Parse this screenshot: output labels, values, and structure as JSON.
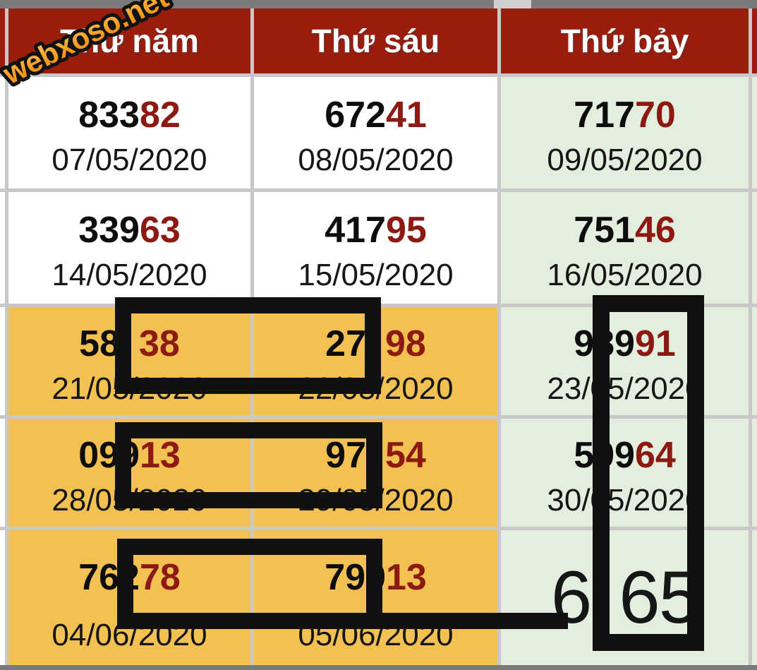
{
  "watermark": {
    "text": "webxoso.net"
  },
  "header": {
    "columns": [
      "Thứ năm",
      "Thứ sáu",
      "Thứ bảy"
    ]
  },
  "table": {
    "rows": [
      {
        "cells": [
          {
            "prefix": "833",
            "suffix": "82",
            "date": "07/05/2020"
          },
          {
            "prefix": "672",
            "suffix": "41",
            "date": "08/05/2020"
          },
          {
            "prefix": "717",
            "suffix": "70",
            "date": "09/05/2020"
          }
        ]
      },
      {
        "cells": [
          {
            "prefix": "339",
            "suffix": "63",
            "date": "14/05/2020"
          },
          {
            "prefix": "417",
            "suffix": "95",
            "date": "15/05/2020"
          },
          {
            "prefix": "751",
            "suffix": "46",
            "date": "16/05/2020"
          }
        ]
      },
      {
        "cells": [
          {
            "prefix": "58",
            "suffix": "38",
            "date": "21/05/2020"
          },
          {
            "prefix": "27",
            "suffix": "98",
            "date": "22/05/2020"
          },
          {
            "prefix": "989",
            "suffix": "91",
            "date": "23/05/2020"
          }
        ]
      },
      {
        "cells": [
          {
            "prefix": "099",
            "suffix": "13",
            "date": "28/05/2020"
          },
          {
            "prefix": "97",
            "suffix": "54",
            "date": "29/05/2020"
          },
          {
            "prefix": "599",
            "suffix": "64",
            "date": "30/05/2020"
          }
        ]
      },
      {
        "cells": [
          {
            "prefix": "762",
            "suffix": "78",
            "date": "04/06/2020"
          },
          {
            "prefix": "799",
            "suffix": "13",
            "date": "05/06/2020"
          },
          {
            "big_prefix": "6",
            "big_suffix": "65"
          }
        ]
      }
    ]
  },
  "colors": {
    "header_bg": "#9A1D0E",
    "number_black": "#0d0d0d",
    "number_red": "#8C1A12",
    "row_orange": "#F3C052",
    "row_green": "#E4EEDE",
    "cell_white": "#FFFFFF",
    "grid_line": "#C8C8C8",
    "frame_gray": "#7B7B7B",
    "annotation_black": "#111111",
    "watermark_orange": "#F7941E"
  }
}
